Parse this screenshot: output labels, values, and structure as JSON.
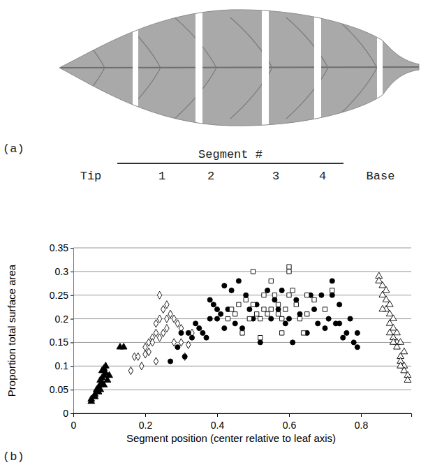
{
  "figure": {
    "panel_a": "(a)",
    "segment_heading": "Segment #",
    "segment_labels": [
      "Tip",
      "1",
      "2",
      "3",
      "4",
      "Base"
    ],
    "panel_b": "(b)"
  },
  "chart_data": {
    "type": "scatter",
    "x_label": "Segment position (center relative to leaf axis)",
    "y_label": "Proportion total surface area",
    "xlim": [
      0,
      0.94
    ],
    "xticks": [
      0,
      0.2,
      0.4,
      0.6,
      0.8
    ],
    "ylim": [
      0,
      0.35
    ],
    "yticks": [
      0,
      0.05,
      0.1,
      0.15,
      0.2,
      0.25,
      0.3,
      0.35
    ],
    "grid": true,
    "series": [
      {
        "marker": "filled-triangle",
        "color": "#000000",
        "x": [
          0.05,
          0.05,
          0.06,
          0.06,
          0.065,
          0.07,
          0.07,
          0.075,
          0.075,
          0.08,
          0.08,
          0.085,
          0.085,
          0.08,
          0.09,
          0.09,
          0.085,
          0.095,
          0.1,
          0.13,
          0.14,
          0.075
        ],
        "values": [
          0.025,
          0.03,
          0.035,
          0.04,
          0.05,
          0.045,
          0.055,
          0.06,
          0.07,
          0.065,
          0.075,
          0.06,
          0.08,
          0.09,
          0.085,
          0.1,
          0.095,
          0.07,
          0.08,
          0.14,
          0.14,
          0.05
        ]
      },
      {
        "marker": "open-diamond",
        "color": "#000000",
        "x": [
          0.16,
          0.17,
          0.18,
          0.19,
          0.2,
          0.2,
          0.21,
          0.21,
          0.22,
          0.22,
          0.23,
          0.23,
          0.23,
          0.24,
          0.24,
          0.25,
          0.25,
          0.26,
          0.26,
          0.26,
          0.27,
          0.28,
          0.28,
          0.29,
          0.3,
          0.32,
          0.3,
          0.24,
          0.33,
          0.31
        ],
        "values": [
          0.09,
          0.12,
          0.12,
          0.1,
          0.125,
          0.14,
          0.13,
          0.15,
          0.16,
          0.15,
          0.11,
          0.17,
          0.19,
          0.2,
          0.16,
          0.17,
          0.22,
          0.2,
          0.23,
          0.18,
          0.21,
          0.2,
          0.15,
          0.19,
          0.15,
          0.145,
          0.18,
          0.25,
          0.17,
          0.12
        ]
      },
      {
        "marker": "filled-circle",
        "color": "#000000",
        "x": [
          0.27,
          0.29,
          0.3,
          0.31,
          0.32,
          0.33,
          0.34,
          0.35,
          0.36,
          0.37,
          0.38,
          0.38,
          0.39,
          0.4,
          0.4,
          0.41,
          0.42,
          0.42,
          0.43,
          0.44,
          0.45,
          0.46,
          0.47,
          0.48,
          0.49,
          0.5,
          0.51,
          0.52,
          0.54,
          0.55,
          0.56,
          0.57,
          0.58,
          0.59,
          0.6,
          0.61,
          0.62,
          0.63,
          0.65,
          0.66,
          0.67,
          0.68,
          0.69,
          0.7,
          0.71,
          0.72,
          0.73,
          0.74,
          0.75,
          0.76,
          0.77,
          0.78,
          0.79,
          0.79,
          0.72,
          0.74
        ],
        "values": [
          0.11,
          0.14,
          0.17,
          0.12,
          0.17,
          0.16,
          0.19,
          0.18,
          0.17,
          0.16,
          0.2,
          0.24,
          0.23,
          0.22,
          0.2,
          0.21,
          0.27,
          0.18,
          0.22,
          0.26,
          0.19,
          0.28,
          0.18,
          0.25,
          0.22,
          0.2,
          0.23,
          0.15,
          0.26,
          0.2,
          0.24,
          0.22,
          0.26,
          0.19,
          0.2,
          0.15,
          0.24,
          0.21,
          0.17,
          0.25,
          0.22,
          0.19,
          0.25,
          0.18,
          0.2,
          0.28,
          0.19,
          0.23,
          0.16,
          0.17,
          0.2,
          0.15,
          0.14,
          0.17,
          0.25,
          0.19
        ]
      },
      {
        "marker": "open-square",
        "color": "#000000",
        "x": [
          0.43,
          0.44,
          0.45,
          0.47,
          0.48,
          0.49,
          0.5,
          0.5,
          0.51,
          0.52,
          0.52,
          0.53,
          0.53,
          0.54,
          0.55,
          0.55,
          0.56,
          0.57,
          0.57,
          0.58,
          0.59,
          0.6,
          0.6,
          0.6,
          0.61,
          0.62,
          0.63,
          0.64,
          0.65,
          0.65,
          0.67,
          0.7,
          0.72,
          0.58,
          0.46
        ],
        "values": [
          0.2,
          0.22,
          0.21,
          0.17,
          0.24,
          0.2,
          0.3,
          0.23,
          0.21,
          0.16,
          0.2,
          0.22,
          0.25,
          0.21,
          0.22,
          0.28,
          0.25,
          0.23,
          0.21,
          0.17,
          0.22,
          0.31,
          0.3,
          0.25,
          0.26,
          0.23,
          0.2,
          0.17,
          0.25,
          0.21,
          0.24,
          0.22,
          0.26,
          0.2,
          0.23
        ]
      },
      {
        "marker": "open-triangle",
        "color": "#000000",
        "x": [
          0.85,
          0.85,
          0.86,
          0.86,
          0.87,
          0.87,
          0.87,
          0.88,
          0.88,
          0.88,
          0.89,
          0.89,
          0.89,
          0.9,
          0.9,
          0.9,
          0.91,
          0.91,
          0.91,
          0.92,
          0.92,
          0.92,
          0.93,
          0.93,
          0.88,
          0.86,
          0.89,
          0.91
        ],
        "values": [
          0.29,
          0.28,
          0.27,
          0.25,
          0.26,
          0.24,
          0.22,
          0.23,
          0.21,
          0.19,
          0.2,
          0.18,
          0.16,
          0.17,
          0.15,
          0.14,
          0.15,
          0.12,
          0.11,
          0.13,
          0.1,
          0.09,
          0.08,
          0.07,
          0.17,
          0.22,
          0.15,
          0.1
        ]
      }
    ]
  }
}
